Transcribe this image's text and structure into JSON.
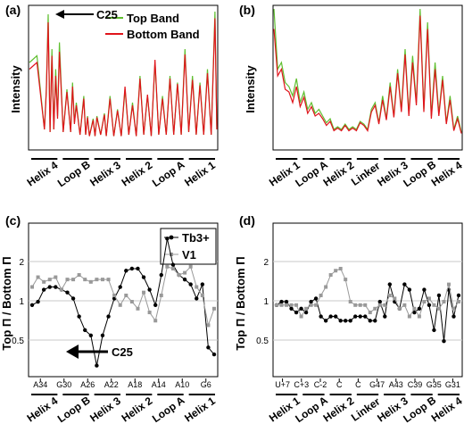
{
  "chart_data": [
    {
      "type": "line",
      "panel_label": "(a)",
      "ylabel": "Intensity",
      "legend": [
        "Top Band",
        "Bottom Band"
      ],
      "colors": {
        "Top Band": "#5fbf2f",
        "Bottom Band": "#e0141b"
      },
      "annotation": "C25",
      "regions": [
        "Helix 4",
        "Loop B",
        "Helix 3",
        "Helix 2",
        "Loop A",
        "Helix 1"
      ],
      "x": [
        0.0,
        0.04,
        0.08,
        0.09,
        0.1,
        0.11,
        0.12,
        0.13,
        0.14,
        0.15,
        0.16,
        0.18,
        0.2,
        0.22,
        0.23,
        0.24,
        0.25,
        0.27,
        0.29,
        0.3,
        0.31,
        0.32,
        0.34,
        0.35,
        0.36,
        0.38,
        0.4,
        0.41,
        0.43,
        0.45,
        0.47,
        0.49,
        0.51,
        0.53,
        0.55,
        0.57,
        0.59,
        0.61,
        0.63,
        0.65,
        0.67,
        0.69,
        0.71,
        0.73,
        0.75,
        0.77,
        0.79,
        0.81,
        0.83,
        0.85,
        0.87,
        0.89,
        0.91,
        0.93,
        0.95,
        0.97,
        0.99,
        1.0
      ],
      "series": [
        {
          "name": "Top Band",
          "values": [
            0.6,
            0.65,
            0.1,
            0.4,
            0.96,
            0.08,
            0.7,
            0.1,
            0.55,
            0.2,
            0.75,
            0.08,
            0.4,
            0.08,
            0.45,
            0.15,
            0.3,
            0.06,
            0.35,
            0.06,
            0.2,
            0.05,
            0.18,
            0.05,
            0.2,
            0.06,
            0.22,
            0.05,
            0.35,
            0.05,
            0.25,
            0.05,
            0.4,
            0.06,
            0.3,
            0.05,
            0.5,
            0.06,
            0.35,
            0.05,
            0.6,
            0.06,
            0.35,
            0.06,
            0.5,
            0.06,
            0.45,
            0.06,
            0.7,
            0.08,
            0.5,
            0.06,
            0.45,
            0.06,
            0.55,
            0.06,
            0.98,
            0.1
          ]
        },
        {
          "name": "Bottom Band",
          "values": [
            0.55,
            0.6,
            0.1,
            0.38,
            0.9,
            0.08,
            0.65,
            0.1,
            0.5,
            0.18,
            0.68,
            0.08,
            0.38,
            0.08,
            0.42,
            0.14,
            0.28,
            0.06,
            0.33,
            0.06,
            0.19,
            0.05,
            0.17,
            0.05,
            0.19,
            0.06,
            0.21,
            0.05,
            0.33,
            0.05,
            0.24,
            0.05,
            0.42,
            0.06,
            0.28,
            0.05,
            0.48,
            0.06,
            0.36,
            0.05,
            0.62,
            0.06,
            0.33,
            0.06,
            0.48,
            0.06,
            0.44,
            0.06,
            0.66,
            0.08,
            0.47,
            0.06,
            0.43,
            0.06,
            0.52,
            0.06,
            0.93,
            0.1
          ]
        }
      ]
    },
    {
      "type": "line",
      "panel_label": "(b)",
      "ylabel": "Intensity",
      "colors": {
        "Top Band": "#5fbf2f",
        "Bottom Band": "#e0141b"
      },
      "regions": [
        "Helix 1",
        "Loop A",
        "Helix 2",
        "Linker",
        "Helix 3",
        "Loop B",
        "Helix 4"
      ],
      "x": [
        0.0,
        0.02,
        0.04,
        0.06,
        0.08,
        0.1,
        0.12,
        0.14,
        0.16,
        0.18,
        0.2,
        0.22,
        0.24,
        0.26,
        0.28,
        0.3,
        0.32,
        0.34,
        0.36,
        0.38,
        0.4,
        0.42,
        0.44,
        0.46,
        0.48,
        0.5,
        0.52,
        0.54,
        0.56,
        0.58,
        0.6,
        0.62,
        0.64,
        0.66,
        0.68,
        0.7,
        0.72,
        0.74,
        0.76,
        0.78,
        0.8,
        0.82,
        0.84,
        0.86,
        0.88,
        0.9,
        0.92,
        0.94,
        0.96,
        0.98,
        1.0
      ],
      "series": [
        {
          "name": "Top Band",
          "values": [
            1.0,
            0.55,
            0.6,
            0.45,
            0.42,
            0.35,
            0.48,
            0.3,
            0.38,
            0.25,
            0.3,
            0.22,
            0.25,
            0.2,
            0.15,
            0.18,
            0.1,
            0.12,
            0.1,
            0.14,
            0.1,
            0.12,
            0.1,
            0.16,
            0.14,
            0.1,
            0.25,
            0.3,
            0.15,
            0.35,
            0.18,
            0.45,
            0.2,
            0.55,
            0.25,
            0.7,
            0.22,
            0.65,
            0.3,
            1.0,
            0.25,
            0.9,
            0.2,
            0.6,
            0.22,
            0.5,
            0.15,
            0.35,
            0.1,
            0.2,
            0.08
          ]
        },
        {
          "name": "Bottom Band",
          "values": [
            0.85,
            0.5,
            0.55,
            0.4,
            0.38,
            0.3,
            0.42,
            0.27,
            0.34,
            0.22,
            0.27,
            0.2,
            0.22,
            0.18,
            0.13,
            0.16,
            0.09,
            0.11,
            0.09,
            0.13,
            0.09,
            0.11,
            0.09,
            0.15,
            0.13,
            0.09,
            0.23,
            0.28,
            0.14,
            0.32,
            0.17,
            0.42,
            0.19,
            0.52,
            0.23,
            0.66,
            0.2,
            0.6,
            0.28,
            0.95,
            0.23,
            0.85,
            0.18,
            0.55,
            0.2,
            0.47,
            0.14,
            0.32,
            0.09,
            0.18,
            0.07
          ]
        }
      ]
    },
    {
      "type": "line",
      "panel_label": "(c)",
      "ylabel": "Top Π / Bottom Π",
      "yscale": "log",
      "yticks": [
        0.5,
        1,
        2
      ],
      "ylim": [
        0.33,
        3.2
      ],
      "annotation": "C25",
      "xticks": [
        "A34",
        "G30",
        "A26",
        "A22",
        "A18",
        "A14",
        "A10",
        "G6"
      ],
      "regions": [
        "Helix 4",
        "Loop B",
        "Helix 3",
        "Helix 2",
        "Loop A",
        "Helix 1"
      ],
      "x": [
        0,
        1,
        2,
        3,
        4,
        5,
        6,
        7,
        8,
        9,
        10,
        11,
        12,
        13,
        14,
        15,
        16,
        17,
        18,
        19,
        20,
        21,
        22,
        23,
        24,
        25,
        26,
        27,
        28,
        29,
        30,
        31
      ],
      "series": [
        {
          "name": "Tb3+",
          "color": "#000000",
          "values": [
            0.95,
            1.0,
            1.2,
            1.25,
            1.25,
            1.2,
            1.15,
            1.05,
            0.8,
            0.65,
            0.6,
            0.38,
            0.6,
            0.8,
            1.05,
            1.25,
            1.6,
            1.65,
            1.65,
            1.45,
            1.2,
            0.95,
            1.5,
            2.6,
            1.75,
            1.5,
            1.4,
            1.3,
            1.05,
            1.3,
            0.5,
            0.45
          ]
        },
        {
          "name": "V1",
          "color": "#999999",
          "values": [
            1.25,
            1.45,
            1.35,
            1.4,
            1.45,
            1.2,
            1.4,
            1.4,
            1.5,
            1.4,
            1.35,
            1.4,
            1.4,
            1.4,
            1.1,
            0.95,
            1.1,
            1.0,
            0.9,
            1.15,
            0.85,
            0.75,
            1.1,
            1.7,
            1.65,
            1.5,
            1.55,
            1.7,
            1.25,
            1.1,
            0.7,
            0.9
          ]
        }
      ]
    },
    {
      "type": "line",
      "panel_label": "(d)",
      "ylabel": "Top Π / Bottom Π",
      "yscale": "log",
      "yticks": [
        0.5,
        1,
        2
      ],
      "ylim": [
        0.33,
        3.2
      ],
      "xticks": [
        "U+7",
        "C+3",
        "C-2",
        "C",
        "C",
        "G47",
        "A43",
        "C39",
        "G35",
        "G31"
      ],
      "regions": [
        "Helix 1",
        "Loop A",
        "Helix 2",
        "Linker",
        "Helix 3",
        "Loop B",
        "Helix 4"
      ],
      "x": [
        0,
        1,
        2,
        3,
        4,
        5,
        6,
        7,
        8,
        9,
        10,
        11,
        12,
        13,
        14,
        15,
        16,
        17,
        18,
        19,
        20,
        21,
        22,
        23,
        24,
        25,
        26,
        27,
        28,
        29,
        30,
        31,
        32,
        33,
        34,
        35,
        36,
        37
      ],
      "series": [
        {
          "name": "Tb3+",
          "color": "#000000",
          "values": [
            0.95,
            1.0,
            1.0,
            0.9,
            0.85,
            0.9,
            0.85,
            1.0,
            1.05,
            0.8,
            0.75,
            0.8,
            0.8,
            0.75,
            0.75,
            0.75,
            0.8,
            0.8,
            0.8,
            0.75,
            0.75,
            1.0,
            0.8,
            1.3,
            1.0,
            0.9,
            1.3,
            1.2,
            0.85,
            0.9,
            1.2,
            0.95,
            0.65,
            1.1,
            0.55,
            1.2,
            0.8,
            1.1
          ]
        },
        {
          "name": "V1",
          "color": "#999999",
          "values": [
            0.95,
            0.95,
            0.95,
            0.95,
            0.95,
            0.8,
            0.9,
            0.95,
            0.95,
            1.1,
            1.25,
            1.5,
            1.6,
            1.65,
            1.4,
            1.0,
            0.95,
            0.95,
            0.95,
            0.85,
            0.9,
            0.95,
            0.95,
            1.1,
            1.05,
            0.9,
            0.95,
            0.8,
            0.9,
            0.8,
            1.0,
            1.05,
            0.95,
            0.9,
            1.0,
            1.3,
            0.9,
            1.0
          ]
        }
      ]
    }
  ]
}
